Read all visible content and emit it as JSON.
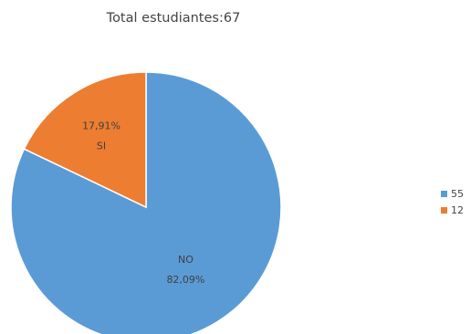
{
  "chart_data": {
    "type": "pie",
    "title": "Total estudiantes:67",
    "slices": [
      {
        "name": "NO",
        "value": 55,
        "percent_label": "82,09%",
        "legend_label": "55",
        "color": "#5b9bd5"
      },
      {
        "name": "SI",
        "value": 12,
        "percent_label": "17,91%",
        "legend_label": "12",
        "color": "#ed7d31"
      }
    ],
    "legend_position": "right"
  }
}
